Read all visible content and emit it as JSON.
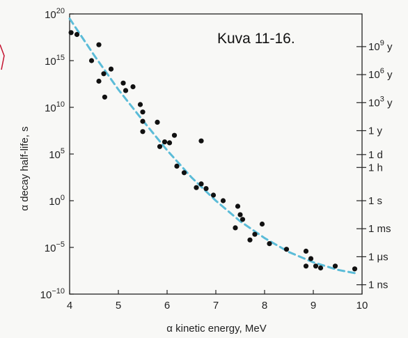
{
  "caption": "Kuva 11-16.",
  "chart_data": {
    "type": "scatter",
    "xlabel": "α kinetic energy, MeV",
    "ylabel": "α decay half-life, s",
    "xlim": [
      4,
      10
    ],
    "ylim_log10": [
      -10,
      20
    ],
    "y_scale": "log",
    "x_ticks": [
      4,
      5,
      6,
      7,
      8,
      9,
      10
    ],
    "y_ticks": [
      {
        "base": "10",
        "exp": "20"
      },
      {
        "base": "10",
        "exp": "15"
      },
      {
        "base": "10",
        "exp": "10"
      },
      {
        "base": "10",
        "exp": "5"
      },
      {
        "base": "10",
        "exp": "0"
      },
      {
        "base": "10",
        "exp": "−5"
      },
      {
        "base": "10",
        "exp": "−10"
      }
    ],
    "right_axis_ticks": [
      {
        "label": "10",
        "sup": "9",
        "suffix": " y",
        "log10_seconds": 16.5
      },
      {
        "label": "10",
        "sup": "6",
        "suffix": " y",
        "log10_seconds": 13.5
      },
      {
        "label": "10",
        "sup": "3",
        "suffix": " y",
        "log10_seconds": 10.5
      },
      {
        "label": "1 y",
        "sup": "",
        "suffix": "",
        "log10_seconds": 7.5
      },
      {
        "label": "1 d",
        "sup": "",
        "suffix": "",
        "log10_seconds": 4.94
      },
      {
        "label": "1 h",
        "sup": "",
        "suffix": "",
        "log10_seconds": 3.56
      },
      {
        "label": "1 s",
        "sup": "",
        "suffix": "",
        "log10_seconds": 0
      },
      {
        "label": "1 ms",
        "sup": "",
        "suffix": "",
        "log10_seconds": -3
      },
      {
        "label": "1 μs",
        "sup": "",
        "suffix": "",
        "log10_seconds": -6
      },
      {
        "label": "1 ns",
        "sup": "",
        "suffix": "",
        "log10_seconds": -9
      }
    ],
    "points_log10": [
      {
        "x": 4.03,
        "y": 18.0
      },
      {
        "x": 4.15,
        "y": 17.8
      },
      {
        "x": 4.45,
        "y": 15.0
      },
      {
        "x": 4.6,
        "y": 16.7
      },
      {
        "x": 4.6,
        "y": 12.8
      },
      {
        "x": 4.7,
        "y": 13.6
      },
      {
        "x": 4.72,
        "y": 11.1
      },
      {
        "x": 4.85,
        "y": 14.1
      },
      {
        "x": 5.1,
        "y": 12.6
      },
      {
        "x": 5.15,
        "y": 11.8
      },
      {
        "x": 5.3,
        "y": 12.2
      },
      {
        "x": 5.45,
        "y": 10.3
      },
      {
        "x": 5.5,
        "y": 9.5
      },
      {
        "x": 5.5,
        "y": 8.5
      },
      {
        "x": 5.5,
        "y": 7.4
      },
      {
        "x": 5.8,
        "y": 8.4
      },
      {
        "x": 5.85,
        "y": 5.8
      },
      {
        "x": 5.95,
        "y": 6.3
      },
      {
        "x": 6.05,
        "y": 6.2
      },
      {
        "x": 6.15,
        "y": 7.0
      },
      {
        "x": 6.2,
        "y": 3.7
      },
      {
        "x": 6.35,
        "y": 3.0
      },
      {
        "x": 6.6,
        "y": 1.4
      },
      {
        "x": 6.7,
        "y": 1.8
      },
      {
        "x": 6.7,
        "y": 6.4
      },
      {
        "x": 6.8,
        "y": 1.3
      },
      {
        "x": 6.95,
        "y": 0.6
      },
      {
        "x": 7.15,
        "y": 0.0
      },
      {
        "x": 7.4,
        "y": -2.9
      },
      {
        "x": 7.45,
        "y": -0.6
      },
      {
        "x": 7.5,
        "y": -1.5
      },
      {
        "x": 7.55,
        "y": -2.0
      },
      {
        "x": 7.7,
        "y": -4.2
      },
      {
        "x": 7.8,
        "y": -3.6
      },
      {
        "x": 7.95,
        "y": -2.5
      },
      {
        "x": 8.1,
        "y": -4.6
      },
      {
        "x": 8.45,
        "y": -5.2
      },
      {
        "x": 8.85,
        "y": -5.4
      },
      {
        "x": 8.85,
        "y": -7.0
      },
      {
        "x": 8.95,
        "y": -6.2
      },
      {
        "x": 9.05,
        "y": -7.0
      },
      {
        "x": 9.15,
        "y": -7.2
      },
      {
        "x": 9.45,
        "y": -7.0
      },
      {
        "x": 9.85,
        "y": -7.3
      }
    ],
    "fit_curve_log10": [
      {
        "x": 4.0,
        "y": 19.5
      },
      {
        "x": 4.5,
        "y": 15.6
      },
      {
        "x": 5.0,
        "y": 11.9
      },
      {
        "x": 5.5,
        "y": 8.6
      },
      {
        "x": 6.0,
        "y": 5.4
      },
      {
        "x": 6.5,
        "y": 2.5
      },
      {
        "x": 7.0,
        "y": 0.0
      },
      {
        "x": 7.5,
        "y": -2.2
      },
      {
        "x": 8.0,
        "y": -4.0
      },
      {
        "x": 8.5,
        "y": -5.5
      },
      {
        "x": 9.0,
        "y": -6.6
      },
      {
        "x": 9.5,
        "y": -7.4
      },
      {
        "x": 9.9,
        "y": -7.8
      }
    ],
    "colors": {
      "points": "#111111",
      "fit": "#5bbcd8",
      "axis": "#222222",
      "accent_mark": "#c4122f"
    }
  }
}
